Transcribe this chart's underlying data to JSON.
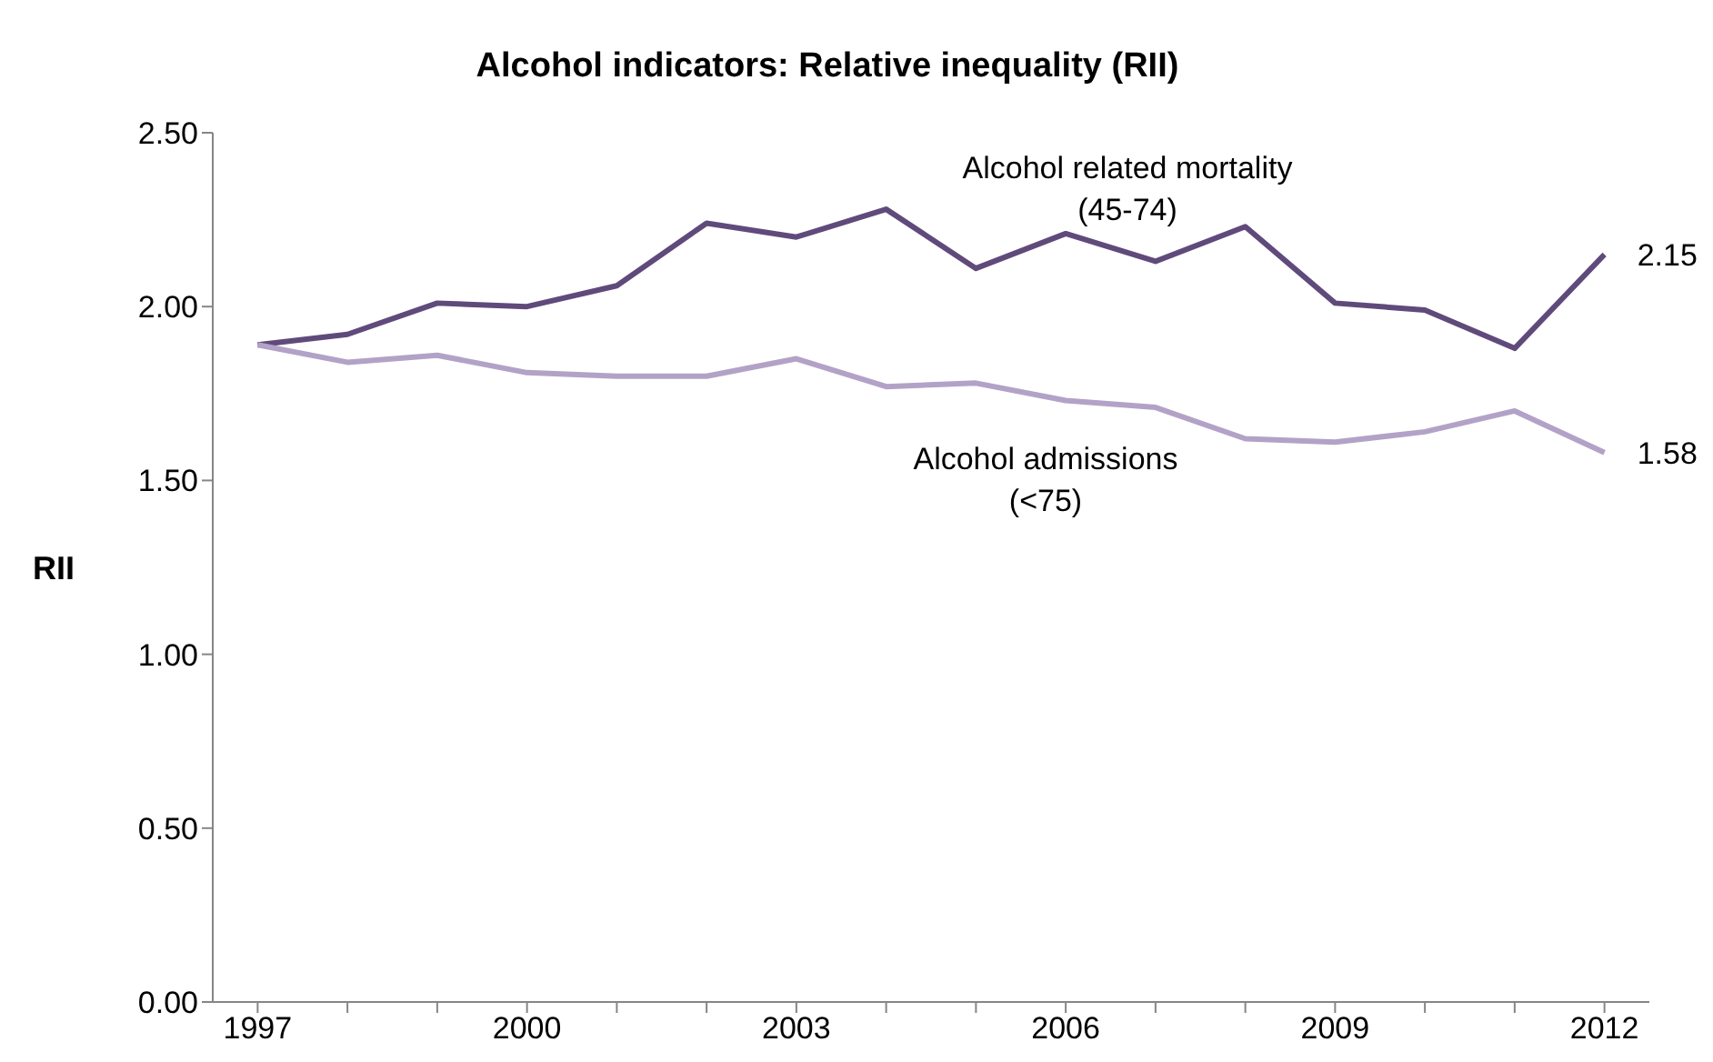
{
  "chart_data": {
    "type": "line",
    "title": "Alcohol indicators: Relative inequality (RII)",
    "ylabel": "RII",
    "categories": [
      "1997",
      null,
      null,
      "2000",
      null,
      null,
      "2003",
      null,
      null,
      "2006",
      null,
      null,
      "2009",
      null,
      null,
      "2012"
    ],
    "series": [
      {
        "name": "Alcohol related mortality (45-74)",
        "color": "#604a7b",
        "values": [
          1.89,
          1.92,
          2.01,
          2.0,
          2.06,
          2.24,
          2.2,
          2.28,
          2.11,
          2.21,
          2.13,
          2.23,
          2.01,
          1.99,
          1.88,
          2.15
        ],
        "value_labels": [
          null,
          null,
          null,
          null,
          null,
          null,
          null,
          null,
          null,
          null,
          null,
          null,
          null,
          null,
          null,
          "2.15"
        ]
      },
      {
        "name": "Alcohol admissions (<75)",
        "color": "#b3a2c7",
        "values": [
          1.89,
          1.84,
          1.86,
          1.81,
          1.8,
          1.8,
          1.85,
          1.77,
          1.78,
          1.73,
          1.71,
          1.62,
          1.61,
          1.64,
          1.7,
          1.58
        ],
        "value_labels": [
          null,
          null,
          null,
          null,
          null,
          null,
          null,
          null,
          null,
          null,
          null,
          null,
          null,
          null,
          null,
          "1.58"
        ]
      }
    ],
    "ylim": [
      0,
      2.5
    ],
    "yticks": [
      {
        "value": 0,
        "label": "0.00"
      },
      {
        "value": 0.5,
        "label": "0.50"
      },
      {
        "value": 1,
        "label": "1.00"
      },
      {
        "value": 1.5,
        "label": "1.50"
      },
      {
        "value": 2,
        "label": "2.00"
      },
      {
        "value": 2.5,
        "label": "2.50"
      }
    ],
    "grid": false,
    "legend": false,
    "marker": "none",
    "line_style": "solid"
  }
}
